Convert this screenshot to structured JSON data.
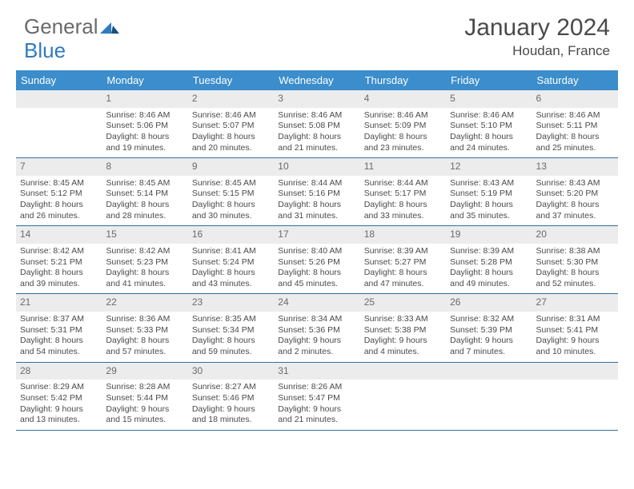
{
  "logo": {
    "part1": "General",
    "part2": "Blue"
  },
  "title": "January 2024",
  "location": "Houdan, France",
  "colors": {
    "header_bg": "#3b8dcb",
    "header_text": "#ffffff",
    "daynum_bg": "#ececec",
    "border": "#2f6fa3",
    "text": "#4a4a4a",
    "logo_gray": "#6a6a6a",
    "logo_blue": "#2f7bbf"
  },
  "day_names": [
    "Sunday",
    "Monday",
    "Tuesday",
    "Wednesday",
    "Thursday",
    "Friday",
    "Saturday"
  ],
  "weeks": [
    [
      null,
      {
        "n": "1",
        "sr": "8:46 AM",
        "ss": "5:06 PM",
        "dl": "8 hours and 19 minutes."
      },
      {
        "n": "2",
        "sr": "8:46 AM",
        "ss": "5:07 PM",
        "dl": "8 hours and 20 minutes."
      },
      {
        "n": "3",
        "sr": "8:46 AM",
        "ss": "5:08 PM",
        "dl": "8 hours and 21 minutes."
      },
      {
        "n": "4",
        "sr": "8:46 AM",
        "ss": "5:09 PM",
        "dl": "8 hours and 23 minutes."
      },
      {
        "n": "5",
        "sr": "8:46 AM",
        "ss": "5:10 PM",
        "dl": "8 hours and 24 minutes."
      },
      {
        "n": "6",
        "sr": "8:46 AM",
        "ss": "5:11 PM",
        "dl": "8 hours and 25 minutes."
      }
    ],
    [
      {
        "n": "7",
        "sr": "8:45 AM",
        "ss": "5:12 PM",
        "dl": "8 hours and 26 minutes."
      },
      {
        "n": "8",
        "sr": "8:45 AM",
        "ss": "5:14 PM",
        "dl": "8 hours and 28 minutes."
      },
      {
        "n": "9",
        "sr": "8:45 AM",
        "ss": "5:15 PM",
        "dl": "8 hours and 30 minutes."
      },
      {
        "n": "10",
        "sr": "8:44 AM",
        "ss": "5:16 PM",
        "dl": "8 hours and 31 minutes."
      },
      {
        "n": "11",
        "sr": "8:44 AM",
        "ss": "5:17 PM",
        "dl": "8 hours and 33 minutes."
      },
      {
        "n": "12",
        "sr": "8:43 AM",
        "ss": "5:19 PM",
        "dl": "8 hours and 35 minutes."
      },
      {
        "n": "13",
        "sr": "8:43 AM",
        "ss": "5:20 PM",
        "dl": "8 hours and 37 minutes."
      }
    ],
    [
      {
        "n": "14",
        "sr": "8:42 AM",
        "ss": "5:21 PM",
        "dl": "8 hours and 39 minutes."
      },
      {
        "n": "15",
        "sr": "8:42 AM",
        "ss": "5:23 PM",
        "dl": "8 hours and 41 minutes."
      },
      {
        "n": "16",
        "sr": "8:41 AM",
        "ss": "5:24 PM",
        "dl": "8 hours and 43 minutes."
      },
      {
        "n": "17",
        "sr": "8:40 AM",
        "ss": "5:26 PM",
        "dl": "8 hours and 45 minutes."
      },
      {
        "n": "18",
        "sr": "8:39 AM",
        "ss": "5:27 PM",
        "dl": "8 hours and 47 minutes."
      },
      {
        "n": "19",
        "sr": "8:39 AM",
        "ss": "5:28 PM",
        "dl": "8 hours and 49 minutes."
      },
      {
        "n": "20",
        "sr": "8:38 AM",
        "ss": "5:30 PM",
        "dl": "8 hours and 52 minutes."
      }
    ],
    [
      {
        "n": "21",
        "sr": "8:37 AM",
        "ss": "5:31 PM",
        "dl": "8 hours and 54 minutes."
      },
      {
        "n": "22",
        "sr": "8:36 AM",
        "ss": "5:33 PM",
        "dl": "8 hours and 57 minutes."
      },
      {
        "n": "23",
        "sr": "8:35 AM",
        "ss": "5:34 PM",
        "dl": "8 hours and 59 minutes."
      },
      {
        "n": "24",
        "sr": "8:34 AM",
        "ss": "5:36 PM",
        "dl": "9 hours and 2 minutes."
      },
      {
        "n": "25",
        "sr": "8:33 AM",
        "ss": "5:38 PM",
        "dl": "9 hours and 4 minutes."
      },
      {
        "n": "26",
        "sr": "8:32 AM",
        "ss": "5:39 PM",
        "dl": "9 hours and 7 minutes."
      },
      {
        "n": "27",
        "sr": "8:31 AM",
        "ss": "5:41 PM",
        "dl": "9 hours and 10 minutes."
      }
    ],
    [
      {
        "n": "28",
        "sr": "8:29 AM",
        "ss": "5:42 PM",
        "dl": "9 hours and 13 minutes."
      },
      {
        "n": "29",
        "sr": "8:28 AM",
        "ss": "5:44 PM",
        "dl": "9 hours and 15 minutes."
      },
      {
        "n": "30",
        "sr": "8:27 AM",
        "ss": "5:46 PM",
        "dl": "9 hours and 18 minutes."
      },
      {
        "n": "31",
        "sr": "8:26 AM",
        "ss": "5:47 PM",
        "dl": "9 hours and 21 minutes."
      },
      null,
      null,
      null
    ]
  ],
  "labels": {
    "sunrise": "Sunrise: ",
    "sunset": "Sunset: ",
    "daylight": "Daylight: "
  }
}
